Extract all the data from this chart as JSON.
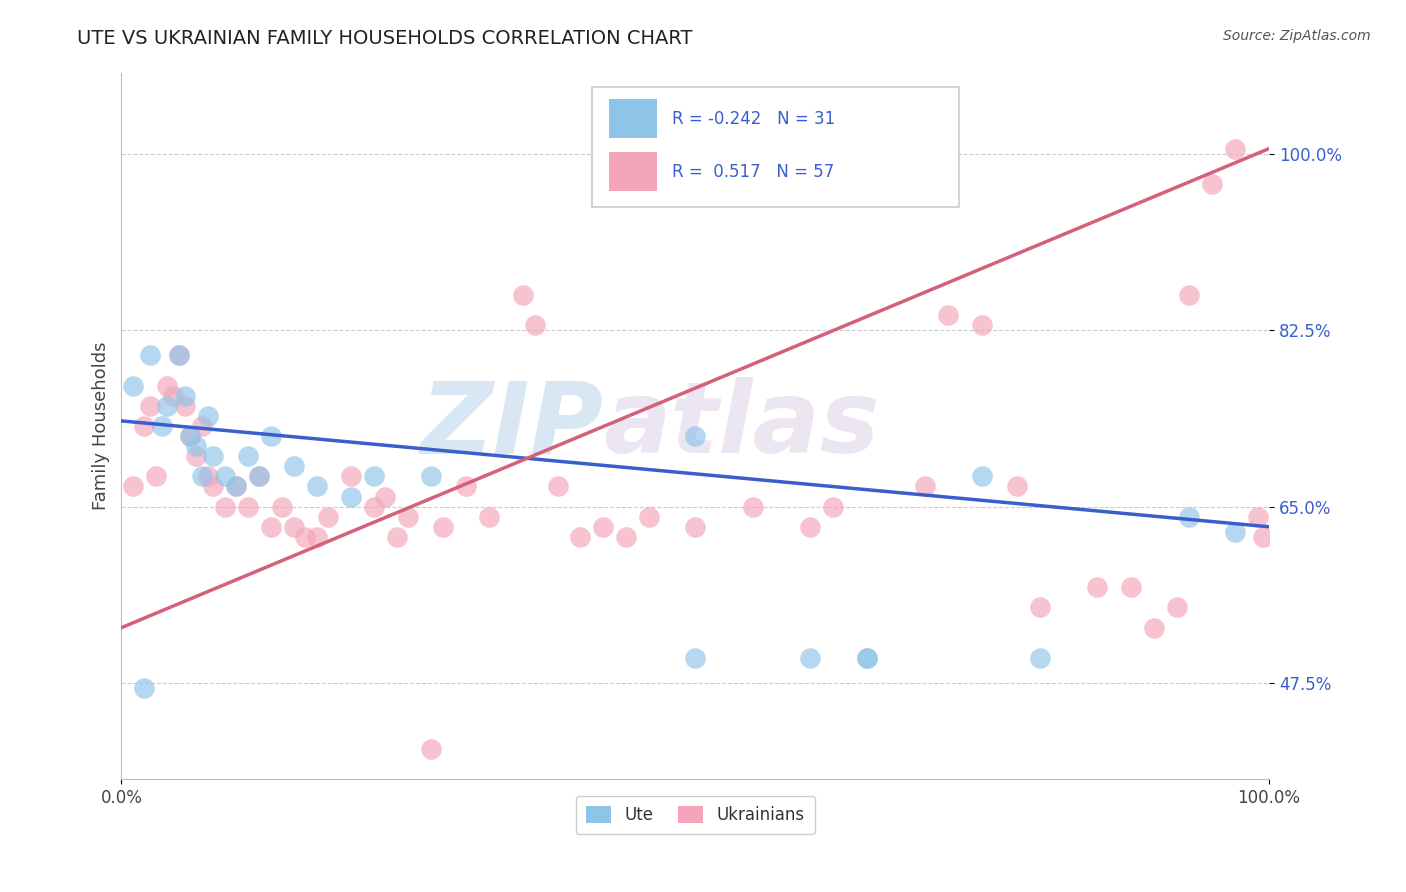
{
  "title": "UTE VS UKRAINIAN FAMILY HOUSEHOLDS CORRELATION CHART",
  "source_text": "Source: ZipAtlas.com",
  "ylabel": "Family Households",
  "watermark_zip": "ZIP",
  "watermark_atlas": "atlas",
  "xlim": [
    0.0,
    100.0
  ],
  "ylim": [
    38.0,
    108.0
  ],
  "yticks": [
    47.5,
    65.0,
    82.5,
    100.0
  ],
  "ute_color": "#8ec4e8",
  "ukr_color": "#f4a4b8",
  "ute_line_color": "#3a5fcd",
  "ukr_line_color": "#d4607a",
  "ute_R": -0.242,
  "ute_N": 31,
  "ukr_R": 0.517,
  "ukr_N": 57,
  "ute_line_start_y": 73.5,
  "ute_line_end_y": 63.0,
  "ukr_line_start_y": 53.0,
  "ukr_line_end_y": 100.5,
  "ute_points": [
    [
      1.0,
      77.0
    ],
    [
      2.5,
      80.0
    ],
    [
      3.5,
      73.0
    ],
    [
      4.0,
      75.0
    ],
    [
      5.0,
      80.0
    ],
    [
      5.5,
      76.0
    ],
    [
      6.0,
      72.0
    ],
    [
      6.5,
      71.0
    ],
    [
      7.0,
      68.0
    ],
    [
      7.5,
      74.0
    ],
    [
      8.0,
      70.0
    ],
    [
      9.0,
      68.0
    ],
    [
      10.0,
      67.0
    ],
    [
      11.0,
      70.0
    ],
    [
      12.0,
      68.0
    ],
    [
      13.0,
      72.0
    ],
    [
      15.0,
      69.0
    ],
    [
      17.0,
      67.0
    ],
    [
      20.0,
      66.0
    ],
    [
      22.0,
      68.0
    ],
    [
      27.0,
      68.0
    ],
    [
      50.0,
      72.0
    ],
    [
      60.0,
      50.0
    ],
    [
      65.0,
      50.0
    ],
    [
      75.0,
      68.0
    ],
    [
      80.0,
      50.0
    ],
    [
      93.0,
      64.0
    ],
    [
      97.0,
      62.5
    ],
    [
      2.0,
      47.0
    ],
    [
      50.0,
      50.0
    ],
    [
      65.0,
      50.0
    ]
  ],
  "ukr_points": [
    [
      1.0,
      67.0
    ],
    [
      2.0,
      73.0
    ],
    [
      2.5,
      75.0
    ],
    [
      3.0,
      68.0
    ],
    [
      4.0,
      77.0
    ],
    [
      4.5,
      76.0
    ],
    [
      5.0,
      80.0
    ],
    [
      5.5,
      75.0
    ],
    [
      6.0,
      72.0
    ],
    [
      6.5,
      70.0
    ],
    [
      7.0,
      73.0
    ],
    [
      7.5,
      68.0
    ],
    [
      8.0,
      67.0
    ],
    [
      9.0,
      65.0
    ],
    [
      10.0,
      67.0
    ],
    [
      11.0,
      65.0
    ],
    [
      12.0,
      68.0
    ],
    [
      13.0,
      63.0
    ],
    [
      14.0,
      65.0
    ],
    [
      15.0,
      63.0
    ],
    [
      16.0,
      62.0
    ],
    [
      17.0,
      62.0
    ],
    [
      18.0,
      64.0
    ],
    [
      20.0,
      68.0
    ],
    [
      22.0,
      65.0
    ],
    [
      23.0,
      66.0
    ],
    [
      24.0,
      62.0
    ],
    [
      25.0,
      64.0
    ],
    [
      28.0,
      63.0
    ],
    [
      30.0,
      67.0
    ],
    [
      32.0,
      64.0
    ],
    [
      35.0,
      86.0
    ],
    [
      36.0,
      83.0
    ],
    [
      38.0,
      67.0
    ],
    [
      40.0,
      62.0
    ],
    [
      42.0,
      63.0
    ],
    [
      44.0,
      62.0
    ],
    [
      46.0,
      64.0
    ],
    [
      50.0,
      63.0
    ],
    [
      55.0,
      65.0
    ],
    [
      60.0,
      63.0
    ],
    [
      62.0,
      65.0
    ],
    [
      70.0,
      67.0
    ],
    [
      72.0,
      84.0
    ],
    [
      75.0,
      83.0
    ],
    [
      78.0,
      67.0
    ],
    [
      80.0,
      55.0
    ],
    [
      85.0,
      57.0
    ],
    [
      88.0,
      57.0
    ],
    [
      90.0,
      53.0
    ],
    [
      92.0,
      55.0
    ],
    [
      93.0,
      86.0
    ],
    [
      95.0,
      97.0
    ],
    [
      97.0,
      100.5
    ],
    [
      99.0,
      64.0
    ],
    [
      99.5,
      62.0
    ],
    [
      27.0,
      41.0
    ]
  ]
}
